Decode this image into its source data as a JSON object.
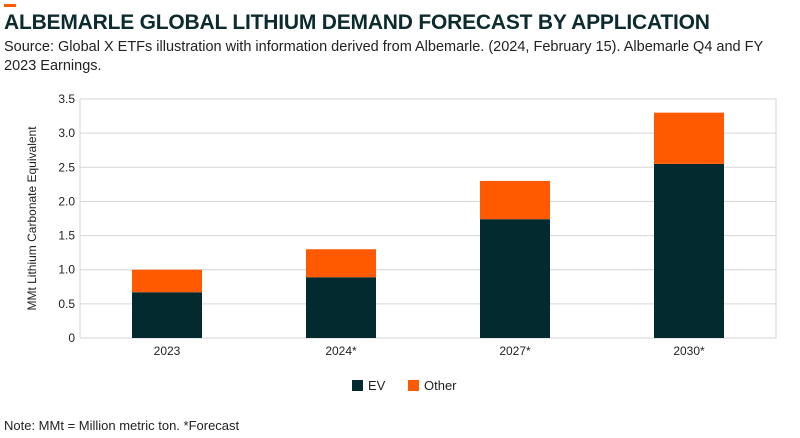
{
  "header": {
    "title": "ALBEMARLE GLOBAL LITHIUM DEMAND FORECAST BY APPLICATION",
    "subtitle": "Source: Global X ETFs illustration with information derived from Albemarle. (2024, February 15). Albemarle Q4 and FY 2023 Earnings.",
    "accent_color": "#ff5a00"
  },
  "footer": {
    "note": "Note: MMt = Million metric ton. *Forecast"
  },
  "chart_data": {
    "type": "bar",
    "stacked": true,
    "categories": [
      "2023",
      "2024*",
      "2027*",
      "2030*"
    ],
    "series": [
      {
        "name": "EV",
        "values": [
          0.67,
          0.89,
          1.74,
          2.55
        ],
        "color": "#032a2e"
      },
      {
        "name": "Other",
        "values": [
          0.33,
          0.41,
          0.56,
          0.75
        ],
        "color": "#ff5a00"
      }
    ],
    "xlabel": "",
    "ylabel": "MMt Lithium Carbonate Equivalent",
    "ylim": [
      0,
      3.5
    ],
    "yticks": [
      "0",
      "0.5",
      "1.0",
      "1.5",
      "2.0",
      "2.5",
      "3.0",
      "3.5"
    ],
    "grid": true,
    "legend_position": "bottom-center"
  }
}
